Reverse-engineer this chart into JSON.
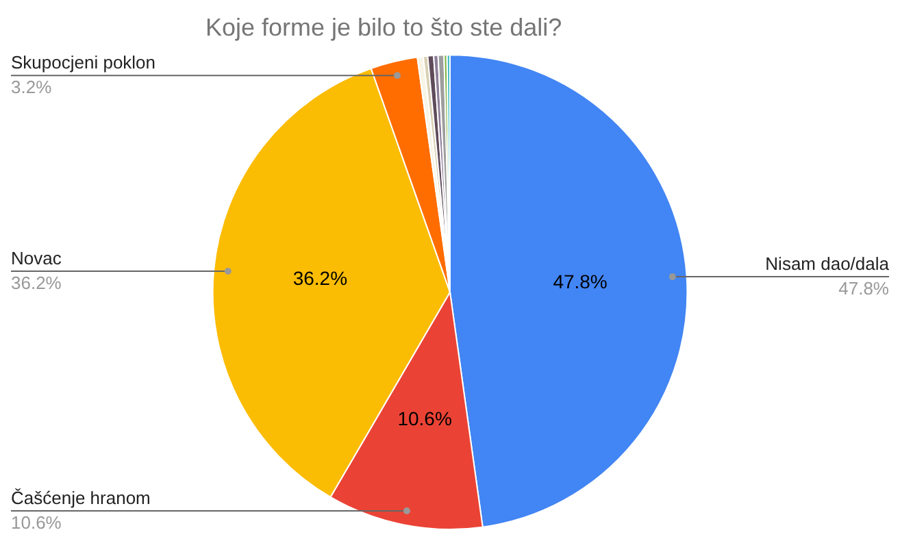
{
  "chart_data": {
    "type": "pie",
    "title": "Koje forme je bilo to što ste dali?",
    "categories": [
      "Nisam dao/dala",
      "Čašćenje hranom",
      "Novac",
      "Skupocjeni poklon",
      null,
      null,
      null,
      null,
      null,
      null,
      null
    ],
    "values": [
      47.8,
      10.6,
      36.2,
      3.2,
      0.4,
      0.3,
      0.4,
      0.3,
      0.4,
      0.2,
      0.2
    ],
    "value_labels": [
      "47.8%",
      "10.6%",
      "36.2%",
      "3.2%",
      null,
      null,
      null,
      null,
      null,
      null,
      null
    ],
    "colors": [
      "#4285f4",
      "#ea4335",
      "#fbbc04",
      "#ff6d01",
      "#f8f4e6",
      "#d9cfb3",
      "#5f4b5a",
      "#8e7f99",
      "#9e9e9e",
      "#7cb342",
      "#46bdc6"
    ],
    "legend": false
  }
}
